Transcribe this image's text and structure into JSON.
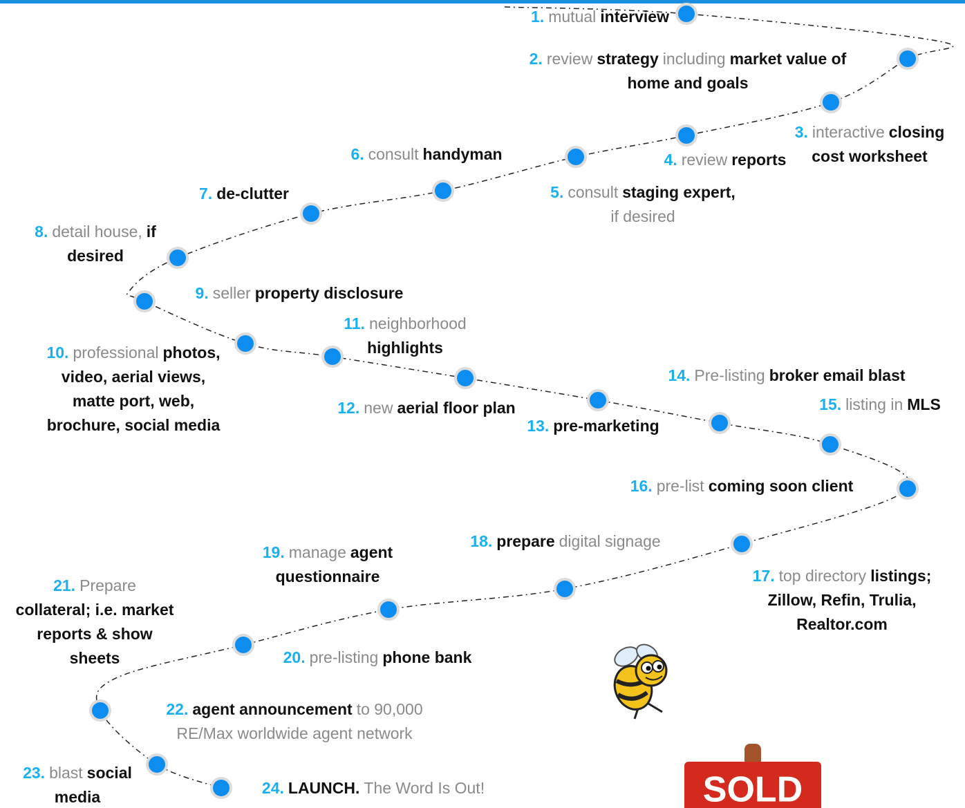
{
  "steps": [
    {
      "number": "1.",
      "lines": [
        [
          {
            "text": "mutual"
          },
          {
            "text": "interview",
            "bold": true
          }
        ]
      ]
    },
    {
      "number": "2.",
      "lines": [
        [
          {
            "text": "review"
          },
          {
            "text": "strategy",
            "bold": true
          },
          {
            "text": "including"
          },
          {
            "text": "market value of",
            "bold": true
          }
        ],
        [
          {
            "text": "home and goals",
            "bold": true
          }
        ]
      ]
    },
    {
      "number": "3.",
      "lines": [
        [
          {
            "text": "interactive"
          },
          {
            "text": "closing",
            "bold": true
          }
        ],
        [
          {
            "text": "cost worksheet",
            "bold": true
          }
        ]
      ]
    },
    {
      "number": "4.",
      "lines": [
        [
          {
            "text": "review"
          },
          {
            "text": "reports",
            "bold": true
          }
        ]
      ]
    },
    {
      "number": "5.",
      "lines": [
        [
          {
            "text": "consult"
          },
          {
            "text": "staging expert,",
            "bold": true
          }
        ],
        [
          {
            "text": "if desired"
          }
        ]
      ]
    },
    {
      "number": "6.",
      "lines": [
        [
          {
            "text": "consult"
          },
          {
            "text": "handyman",
            "bold": true
          }
        ]
      ]
    },
    {
      "number": "7.",
      "lines": [
        [
          {
            "text": "de-clutter",
            "bold": true
          }
        ]
      ]
    },
    {
      "number": "8.",
      "lines": [
        [
          {
            "text": "detail house,"
          },
          {
            "text": "if",
            "bold": true
          }
        ],
        [
          {
            "text": "desired",
            "bold": true
          }
        ]
      ]
    },
    {
      "number": "9.",
      "lines": [
        [
          {
            "text": "seller"
          },
          {
            "text": "property disclosure",
            "bold": true
          }
        ]
      ]
    },
    {
      "number": "10.",
      "lines": [
        [
          {
            "text": "professional"
          },
          {
            "text": "photos,",
            "bold": true
          }
        ],
        [
          {
            "text": "video, aerial views,",
            "bold": true
          }
        ],
        [
          {
            "text": "matte port, web,",
            "bold": true
          }
        ],
        [
          {
            "text": "brochure, social media",
            "bold": true
          }
        ]
      ]
    },
    {
      "number": "11.",
      "lines": [
        [
          {
            "text": "neighborhood"
          }
        ],
        [
          {
            "text": "highlights",
            "bold": true
          }
        ]
      ]
    },
    {
      "number": "12.",
      "lines": [
        [
          {
            "text": "new"
          },
          {
            "text": "aerial floor plan",
            "bold": true
          }
        ]
      ]
    },
    {
      "number": "13.",
      "lines": [
        [
          {
            "text": "pre-marketing",
            "bold": true
          }
        ]
      ]
    },
    {
      "number": "14.",
      "lines": [
        [
          {
            "text": "Pre-listing"
          },
          {
            "text": "broker email blast",
            "bold": true
          }
        ]
      ]
    },
    {
      "number": "15.",
      "lines": [
        [
          {
            "text": "listing in"
          },
          {
            "text": "MLS",
            "bold": true
          }
        ]
      ]
    },
    {
      "number": "16.",
      "lines": [
        [
          {
            "text": "pre-list"
          },
          {
            "text": "coming soon client",
            "bold": true
          }
        ]
      ]
    },
    {
      "number": "17.",
      "lines": [
        [
          {
            "text": "top directory"
          },
          {
            "text": "listings;",
            "bold": true
          }
        ],
        [
          {
            "text": "Zillow, Refin, Trulia,",
            "bold": true
          }
        ],
        [
          {
            "text": "Realtor.com",
            "bold": true
          }
        ]
      ]
    },
    {
      "number": "18.",
      "lines": [
        [
          {
            "text": "prepare",
            "bold": true
          },
          {
            "text": "digital signage"
          }
        ]
      ]
    },
    {
      "number": "19.",
      "lines": [
        [
          {
            "text": "manage"
          },
          {
            "text": "agent",
            "bold": true
          }
        ],
        [
          {
            "text": "questionnaire",
            "bold": true
          }
        ]
      ]
    },
    {
      "number": "20.",
      "lines": [
        [
          {
            "text": "pre-listing"
          },
          {
            "text": "phone bank",
            "bold": true
          }
        ]
      ]
    },
    {
      "number": "21.",
      "lines": [
        [
          {
            "text": "Prepare"
          }
        ],
        [
          {
            "text": "collateral; i.e. market",
            "bold": true
          }
        ],
        [
          {
            "text": "reports & show",
            "bold": true
          }
        ],
        [
          {
            "text": "sheets",
            "bold": true
          }
        ]
      ]
    },
    {
      "number": "22.",
      "lines": [
        [
          {
            "text": "agent announcement",
            "bold": true
          },
          {
            "text": "to 90,000"
          }
        ],
        [
          {
            "text": "RE/Max worldwide agent network"
          }
        ]
      ]
    },
    {
      "number": "23.",
      "lines": [
        [
          {
            "text": "blast"
          },
          {
            "text": "social",
            "bold": true
          }
        ],
        [
          {
            "text": "media",
            "bold": true
          }
        ]
      ]
    },
    {
      "number": "24.",
      "lines": [
        [
          {
            "text": "LAUNCH.",
            "bold": true
          },
          {
            "text": "The Word Is Out!"
          }
        ]
      ]
    }
  ],
  "sign": {
    "text": "SOLD"
  }
}
